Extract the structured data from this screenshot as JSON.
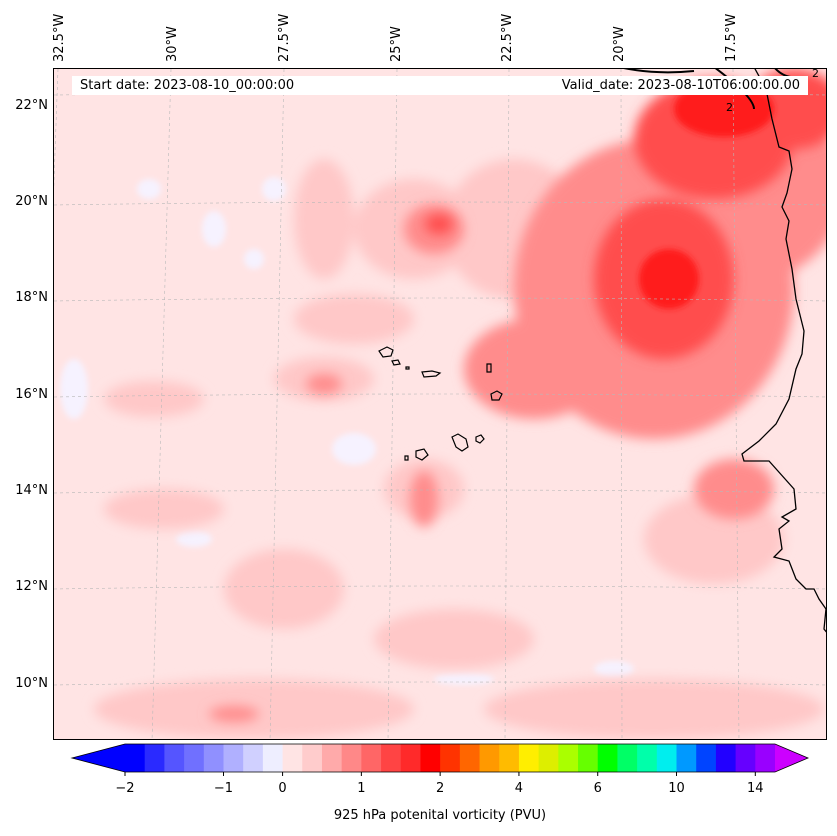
{
  "map": {
    "lon_labels": [
      "32.5°W",
      "30°W",
      "27.5°W",
      "25°W",
      "22.5°W",
      "20°W",
      "17.5°W"
    ],
    "lat_labels": [
      "22°N",
      "20°N",
      "18°N",
      "16°N",
      "14°N",
      "12°N",
      "10°N"
    ],
    "start_date": "Start date: 2023-08-10_00:00:00",
    "valid_date": "Valid_date: 2023-08-10T06:00:00.00",
    "contour_labels": [
      "2",
      "2"
    ],
    "field": "925 hPa potential vorticity",
    "background_color": "#ffe4e4",
    "coastline_color": "#000000"
  },
  "colorbar": {
    "title": "925 hPa potenital vorticity (PVU)",
    "tick_labels": [
      "−2",
      "−1",
      "0",
      "1",
      "2",
      "4",
      "6",
      "10",
      "14"
    ],
    "colors": [
      "#0000ff",
      "#2a2aff",
      "#5555ff",
      "#7070ff",
      "#9090ff",
      "#b0b0ff",
      "#d0d0ff",
      "#eeeeff",
      "#ffe4e4",
      "#ffcccc",
      "#ffaaaa",
      "#ff8888",
      "#ff6666",
      "#ff4444",
      "#ff2a2a",
      "#ff0000",
      "#ff3300",
      "#ff6600",
      "#ff9900",
      "#ffbb00",
      "#ffee00",
      "#ddee00",
      "#aaff00",
      "#66ff00",
      "#00ff00",
      "#00ff66",
      "#00ffaa",
      "#00eeee",
      "#0099ff",
      "#0044ff",
      "#2200ff",
      "#6600ff",
      "#9900ff"
    ],
    "under_color": "#0000ff",
    "over_color": "#cc00ff",
    "extend": "both"
  }
}
